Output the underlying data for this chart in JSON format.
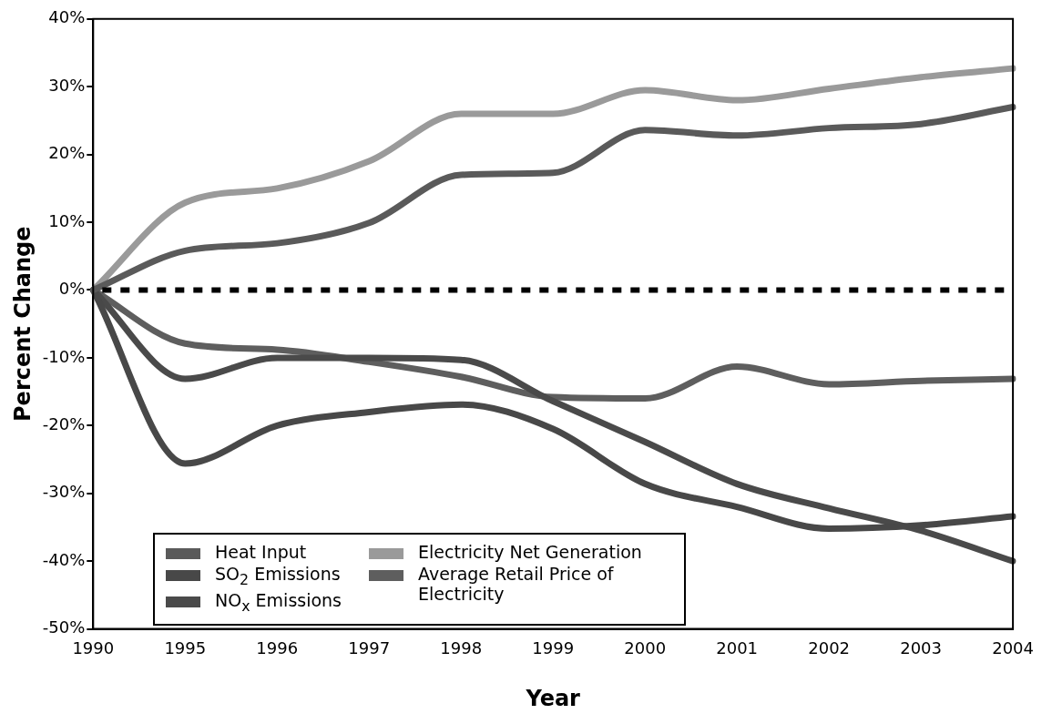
{
  "chart_data": {
    "type": "line",
    "xlabel": "Year",
    "ylabel": "Percent Change",
    "categories": [
      "1990",
      "1995",
      "1996",
      "1997",
      "1998",
      "1999",
      "2000",
      "2001",
      "2002",
      "2003",
      "2004"
    ],
    "series": [
      {
        "name": "Heat Input",
        "color": "#5a5a5a",
        "values": [
          0,
          5.8,
          6.9,
          9.9,
          17,
          17.3,
          23.6,
          22.8,
          23.9,
          24.5,
          27
        ]
      },
      {
        "name": "SO$_{2}$ Emissions",
        "color": "#484848",
        "values": [
          0,
          -25.6,
          -20,
          -18,
          -16.9,
          -20.5,
          -28.6,
          -32,
          -35.2,
          -34.7,
          -33.4
        ]
      },
      {
        "name": "NO$_{x}$ Emissions",
        "color": "#4a4a4a",
        "values": [
          0,
          -13.1,
          -10,
          -10,
          -10.3,
          -16.4,
          -22.4,
          -28.6,
          -32.2,
          -35.5,
          -40
        ]
      },
      {
        "name": "Electricity Net Generation",
        "color": "#9a9a9a",
        "values": [
          0,
          12.9,
          15,
          19,
          26,
          26,
          29.5,
          28,
          29.7,
          31.4,
          32.7
        ]
      },
      {
        "name": "Average Retail Price of Electricity",
        "color": "#5e5e5e",
        "values": [
          0,
          -7.9,
          -8.8,
          -10.6,
          -12.8,
          -15.8,
          -16,
          -11.3,
          -13.9,
          -13.4,
          -13.1
        ]
      }
    ],
    "ylim": [
      -50,
      40
    ],
    "yticks": [
      {
        "value": -50,
        "label": "-50%"
      },
      {
        "value": -40,
        "label": "-40%"
      },
      {
        "value": -30,
        "label": "-30%"
      },
      {
        "value": -20,
        "label": "-20%"
      },
      {
        "value": -10,
        "label": "-10%"
      },
      {
        "value": 0,
        "label": "0%"
      },
      {
        "value": 10,
        "label": "10%"
      },
      {
        "value": 20,
        "label": "20%"
      },
      {
        "value": 30,
        "label": "30%"
      },
      {
        "value": 40,
        "label": "40%"
      }
    ],
    "ref_lines": [
      {
        "axis": "y",
        "value": 0,
        "color": "#000000",
        "line_style": "dashed"
      }
    ],
    "grid": false,
    "legend": "bottom left",
    "marker": "none",
    "line_style": "solid"
  }
}
